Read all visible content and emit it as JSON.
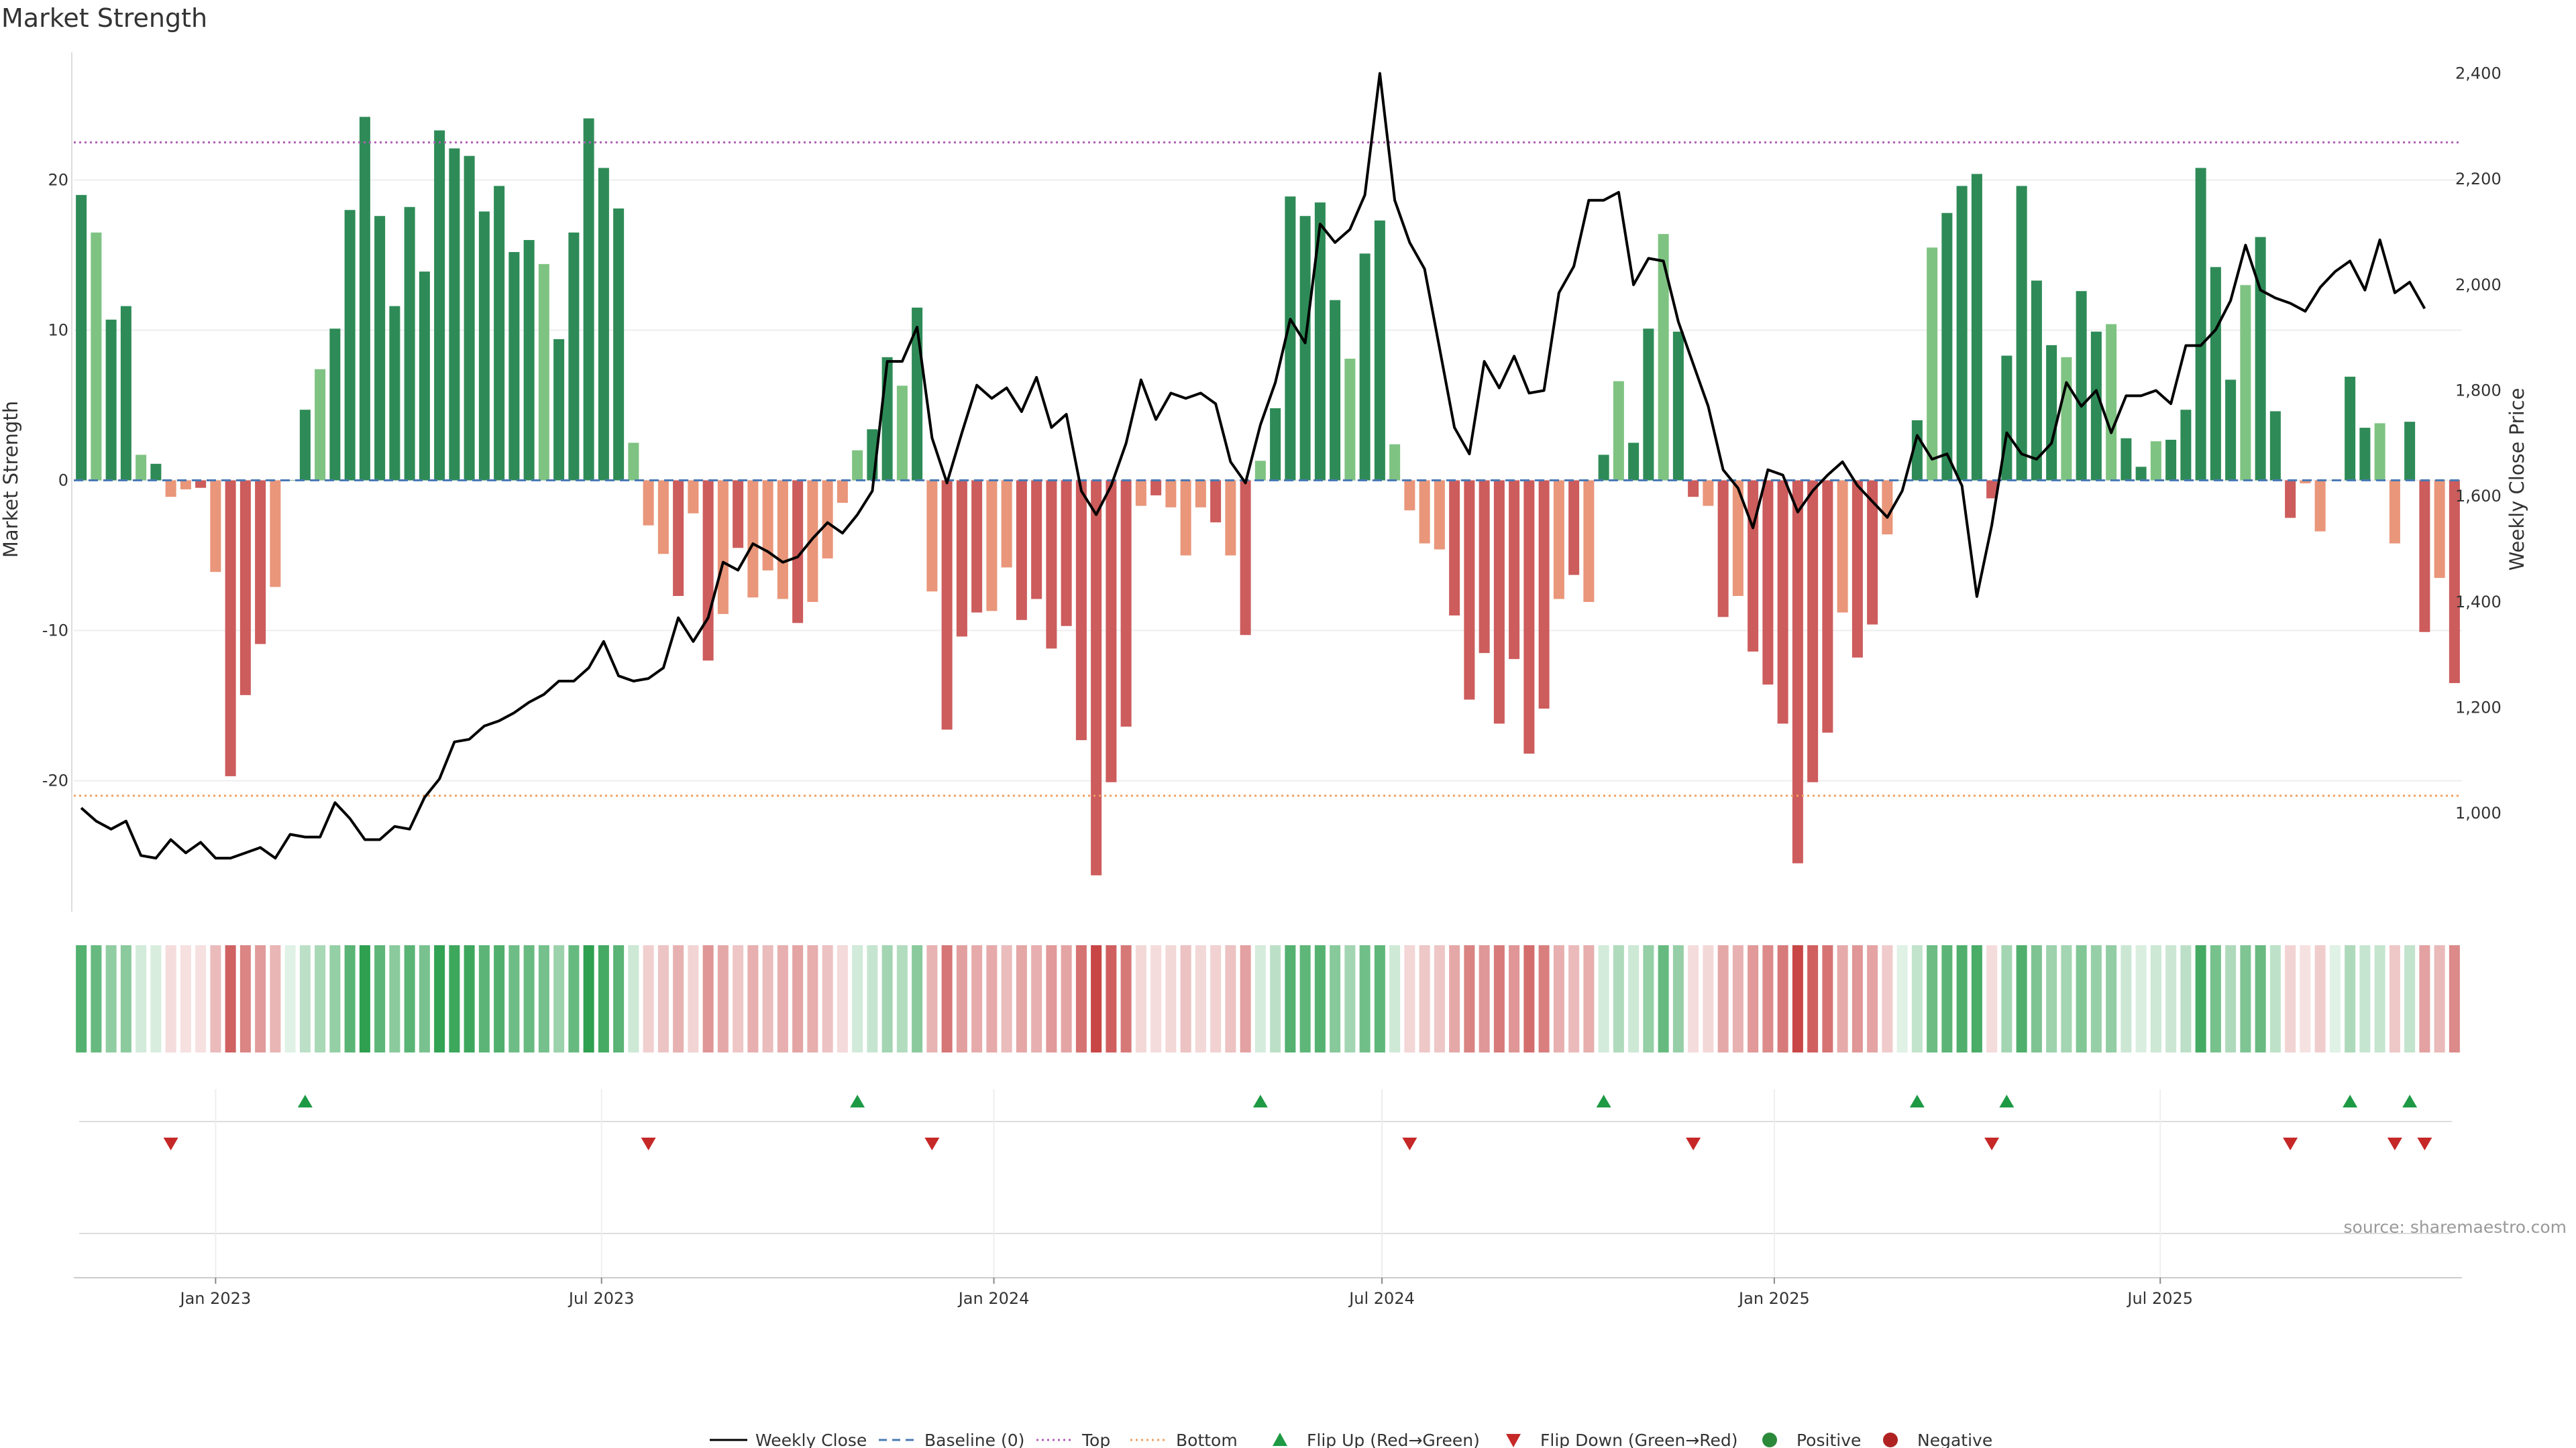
{
  "chart_data": {
    "type": "bar",
    "title": "Market Strength",
    "ylabel": "Market Strength",
    "y2label": "Weekly Close Price",
    "source": "source: sharemaestro.com",
    "ylim": [
      -28.5,
      28.5
    ],
    "yticks": [
      -20,
      -10,
      0,
      10,
      20
    ],
    "y2lim": [
      820,
      2440
    ],
    "y2ticks": [
      1000,
      1200,
      1400,
      1600,
      1800,
      2000,
      2200,
      2400
    ],
    "y2tick_labels": [
      "1,000",
      "1,200",
      "1,400",
      "1,600",
      "1,800",
      "2,000",
      "2,200",
      "2,400"
    ],
    "top_line": 22.5,
    "bottom_line": -21,
    "x_start": "2022-10-30",
    "x_step_days": 7,
    "x_ticks": [
      {
        "label": "Jan 2023",
        "date": "2023-01-01"
      },
      {
        "label": "Jul 2023",
        "date": "2023-07-01"
      },
      {
        "label": "Jan 2024",
        "date": "2024-01-01"
      },
      {
        "label": "Jul 2024",
        "date": "2024-07-01"
      },
      {
        "label": "Jan 2025",
        "date": "2025-01-01"
      },
      {
        "label": "Jul 2025",
        "date": "2025-07-01"
      }
    ],
    "strength": [
      19,
      16.5,
      10.7,
      11.6,
      1.7,
      1.1,
      -1.1,
      -0.6,
      -0.5,
      -6.1,
      -19.7,
      -14.3,
      -10.9,
      -7.1,
      0,
      4.7,
      7.4,
      10.1,
      18,
      24.2,
      17.6,
      11.6,
      18.2,
      13.9,
      23.3,
      22.1,
      21.6,
      17.9,
      19.6,
      15.2,
      16,
      14.4,
      9.4,
      16.5,
      24.1,
      20.8,
      18.1,
      2.5,
      -3,
      -4.9,
      -7.7,
      -2.2,
      -12,
      -8.9,
      -4.5,
      -7.8,
      -6,
      -7.9,
      -9.5,
      -8.1,
      -5.2,
      -1.5,
      2,
      3.4,
      8.2,
      6.3,
      11.5,
      -7.4,
      -16.6,
      -10.4,
      -8.8,
      -8.7,
      -5.8,
      -9.3,
      -7.9,
      -11.2,
      -9.7,
      -17.3,
      -26.3,
      -20.1,
      -16.4,
      -1.7,
      -1,
      -1.8,
      -5,
      -1.8,
      -2.8,
      -5,
      -10.3,
      1.3,
      4.8,
      18.9,
      17.6,
      18.5,
      12,
      8.1,
      15.1,
      17.3,
      2.4,
      -2,
      -4.2,
      -4.6,
      -9,
      -14.6,
      -11.5,
      -16.2,
      -11.9,
      -18.2,
      -15.2,
      -7.9,
      -6.3,
      -8.1,
      1.7,
      6.6,
      2.5,
      10.1,
      16.4,
      9.9,
      -1.1,
      -1.7,
      -9.1,
      -7.7,
      -11.4,
      -13.6,
      -16.2,
      -25.5,
      -20.1,
      -16.8,
      -8.8,
      -11.8,
      -9.6,
      -3.6,
      0,
      4,
      15.5,
      17.8,
      19.6,
      20.4,
      -1.2,
      8.3,
      19.6,
      13.3,
      9,
      8.2,
      12.6,
      9.9,
      10.4,
      2.8,
      0.9,
      2.6,
      2.7,
      4.7,
      20.8,
      14.2,
      6.7,
      13,
      16.2,
      4.6,
      -2.5,
      -0.2,
      -3.4,
      0,
      6.9,
      3.5,
      3.8,
      -4.2,
      3.9,
      -10.1,
      -6.5,
      -13.5
    ],
    "close": [
      1010,
      985,
      970,
      985,
      920,
      915,
      950,
      925,
      945,
      915,
      915,
      925,
      935,
      915,
      960,
      955,
      955,
      1020,
      990,
      950,
      950,
      975,
      970,
      1030,
      1065,
      1135,
      1140,
      1165,
      1175,
      1190,
      1210,
      1225,
      1250,
      1250,
      1275,
      1325,
      1260,
      1250,
      1255,
      1275,
      1370,
      1325,
      1370,
      1475,
      1460,
      1510,
      1495,
      1475,
      1485,
      1520,
      1550,
      1530,
      1565,
      1610,
      1855,
      1855,
      1920,
      1710,
      1625,
      1720,
      1810,
      1785,
      1805,
      1760,
      1825,
      1730,
      1755,
      1610,
      1565,
      1620,
      1700,
      1820,
      1745,
      1795,
      1785,
      1795,
      1775,
      1665,
      1625,
      1735,
      1815,
      1935,
      1890,
      2115,
      2080,
      2105,
      2170,
      2400,
      2160,
      2080,
      2030,
      1880,
      1730,
      1680,
      1855,
      1805,
      1865,
      1795,
      1800,
      1985,
      2035,
      2160,
      2160,
      2175,
      2000,
      2050,
      2045,
      1930,
      1850,
      1770,
      1650,
      1615,
      1540,
      1650,
      1640,
      1570,
      1610,
      1640,
      1665,
      1620,
      1590,
      1560,
      1610,
      1715,
      1670,
      1680,
      1620,
      1410,
      1545,
      1720,
      1680,
      1670,
      1700,
      1815,
      1770,
      1800,
      1720,
      1790,
      1790,
      1800,
      1775,
      1885,
      1885,
      1915,
      1970,
      2075,
      1990,
      1975,
      1965,
      1950,
      1995,
      2025,
      2045,
      1990,
      2085,
      1985,
      2005,
      1955
    ]
  },
  "legend": [
    {
      "label": "Weekly Close",
      "symbol": "line-solid",
      "color": "#000000"
    },
    {
      "label": "Baseline (0)",
      "symbol": "line-dashed",
      "color": "#4a7ab5"
    },
    {
      "label": "Top",
      "symbol": "line-dotted",
      "color": "#b05fb5"
    },
    {
      "label": "Bottom",
      "symbol": "line-dotted",
      "color": "#f0a060"
    },
    {
      "label": "Flip Up (Red→Green)",
      "symbol": "triangle-up-icon",
      "color": "#1e9a45"
    },
    {
      "label": "Flip Down (Green→Red)",
      "symbol": "triangle-down-icon",
      "color": "#c62828"
    },
    {
      "label": "Positive",
      "symbol": "circle-icon",
      "color": "#2a8a3a"
    },
    {
      "label": "Negative",
      "symbol": "circle-icon",
      "color": "#b02222"
    }
  ],
  "colors": {
    "pos_strong": "#2e8b57",
    "pos_weak": "#7fc382",
    "neg_strong": "#cd5c5c",
    "neg_weak": "#e9967a",
    "line": "#000000",
    "baseline": "#4a7ab5",
    "top": "#b05fb5",
    "bottom": "#f0a060",
    "flip_up": "#1e9a45",
    "flip_down": "#c62828",
    "grid": "#eeeeee"
  }
}
